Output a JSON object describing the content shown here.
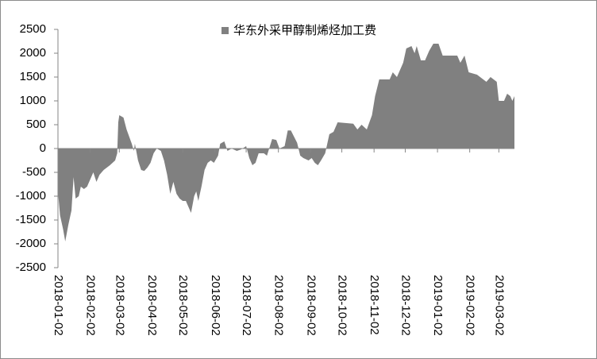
{
  "chart_data": {
    "type": "area",
    "legend": "top",
    "ylim": [
      -2500,
      2500
    ],
    "yticks": [
      -2500,
      -2000,
      -1500,
      -1000,
      -500,
      0,
      500,
      1000,
      1500,
      2000,
      2500
    ],
    "xlim": [
      "2018-01-02",
      "2019-03-17"
    ],
    "xticks": [
      "2018-01-02",
      "2018-02-02",
      "2018-03-02",
      "2018-04-02",
      "2018-05-02",
      "2018-06-02",
      "2018-07-02",
      "2018-08-02",
      "2018-09-02",
      "2018-10-02",
      "2018-11-02",
      "2018-12-02",
      "2019-01-02",
      "2019-02-02",
      "2019-03-02"
    ],
    "x": [
      "2018-01-02",
      "2018-01-04",
      "2018-01-07",
      "2018-01-09",
      "2018-01-12",
      "2018-01-15",
      "2018-01-17",
      "2018-01-19",
      "2018-01-22",
      "2018-01-24",
      "2018-01-27",
      "2018-01-30",
      "2018-02-02",
      "2018-02-05",
      "2018-02-08",
      "2018-02-11",
      "2018-02-15",
      "2018-02-21",
      "2018-02-26",
      "2018-02-28",
      "2018-03-01",
      "2018-03-02",
      "2018-03-06",
      "2018-03-09",
      "2018-03-14",
      "2018-03-16",
      "2018-03-17",
      "2018-03-20",
      "2018-03-23",
      "2018-03-26",
      "2018-03-29",
      "2018-04-01",
      "2018-04-04",
      "2018-04-07",
      "2018-04-11",
      "2018-04-14",
      "2018-04-17",
      "2018-04-20",
      "2018-04-23",
      "2018-04-26",
      "2018-04-29",
      "2018-05-02",
      "2018-05-05",
      "2018-05-08",
      "2018-05-10",
      "2018-05-13",
      "2018-05-15",
      "2018-05-17",
      "2018-05-20",
      "2018-05-23",
      "2018-05-26",
      "2018-05-29",
      "2018-06-01",
      "2018-06-05",
      "2018-06-07",
      "2018-06-11",
      "2018-06-14",
      "2018-06-18",
      "2018-06-23",
      "2018-06-27",
      "2018-07-02",
      "2018-07-05",
      "2018-07-08",
      "2018-07-11",
      "2018-07-14",
      "2018-07-19",
      "2018-07-22",
      "2018-07-27",
      "2018-07-31",
      "2018-08-03",
      "2018-08-08",
      "2018-08-11",
      "2018-08-14",
      "2018-08-17",
      "2018-08-20",
      "2018-08-23",
      "2018-08-26",
      "2018-08-31",
      "2018-09-03",
      "2018-09-06",
      "2018-09-09",
      "2018-09-12",
      "2018-09-16",
      "2018-09-20",
      "2018-09-24",
      "2018-09-28",
      "2018-10-13",
      "2018-10-17",
      "2018-10-21",
      "2018-10-26",
      "2018-10-31",
      "2018-11-03",
      "2018-11-07",
      "2018-11-17",
      "2018-11-20",
      "2018-11-24",
      "2018-11-30",
      "2018-12-03",
      "2018-12-08",
      "2018-12-11",
      "2018-12-13",
      "2018-12-17",
      "2018-12-21",
      "2018-12-25",
      "2018-12-29",
      "2019-01-03",
      "2019-01-07",
      "2019-01-13",
      "2019-01-21",
      "2019-01-24",
      "2019-01-28",
      "2019-02-01",
      "2019-02-09",
      "2019-02-12",
      "2019-02-18",
      "2019-02-22",
      "2019-02-28",
      "2019-03-02",
      "2019-03-07",
      "2019-03-10",
      "2019-03-13",
      "2019-03-15",
      "2019-03-17"
    ],
    "series": [
      {
        "name": "华东外采甲醇制烯烃加工费",
        "color": "#808080",
        "values": [
          -900,
          -1400,
          -1700,
          -1950,
          -1600,
          -1300,
          -600,
          -1050,
          -1000,
          -800,
          -850,
          -800,
          -650,
          -500,
          -700,
          -550,
          -450,
          -350,
          -250,
          -100,
          550,
          700,
          650,
          400,
          100,
          -50,
          100,
          -250,
          -450,
          -470,
          -400,
          -300,
          -100,
          0,
          -50,
          -250,
          -550,
          -950,
          -700,
          -950,
          -1050,
          -1100,
          -1100,
          -1250,
          -1350,
          -1000,
          -900,
          -1100,
          -800,
          -450,
          -300,
          -250,
          -300,
          -150,
          100,
          150,
          -50,
          0,
          -50,
          -20,
          50,
          -200,
          -350,
          -300,
          -100,
          -100,
          -150,
          200,
          180,
          0,
          50,
          380,
          380,
          250,
          120,
          -150,
          -200,
          -250,
          -200,
          -300,
          -350,
          -250,
          -100,
          300,
          350,
          550,
          520,
          400,
          500,
          400,
          700,
          1100,
          1450,
          1450,
          1600,
          1500,
          1800,
          2100,
          2150,
          2000,
          2150,
          1850,
          1850,
          2050,
          2200,
          2200,
          1950,
          1950,
          1950,
          1800,
          1950,
          1600,
          1550,
          1500,
          1400,
          1500,
          1400,
          1000,
          1000,
          1150,
          1100,
          1000,
          1100
        ]
      }
    ]
  }
}
